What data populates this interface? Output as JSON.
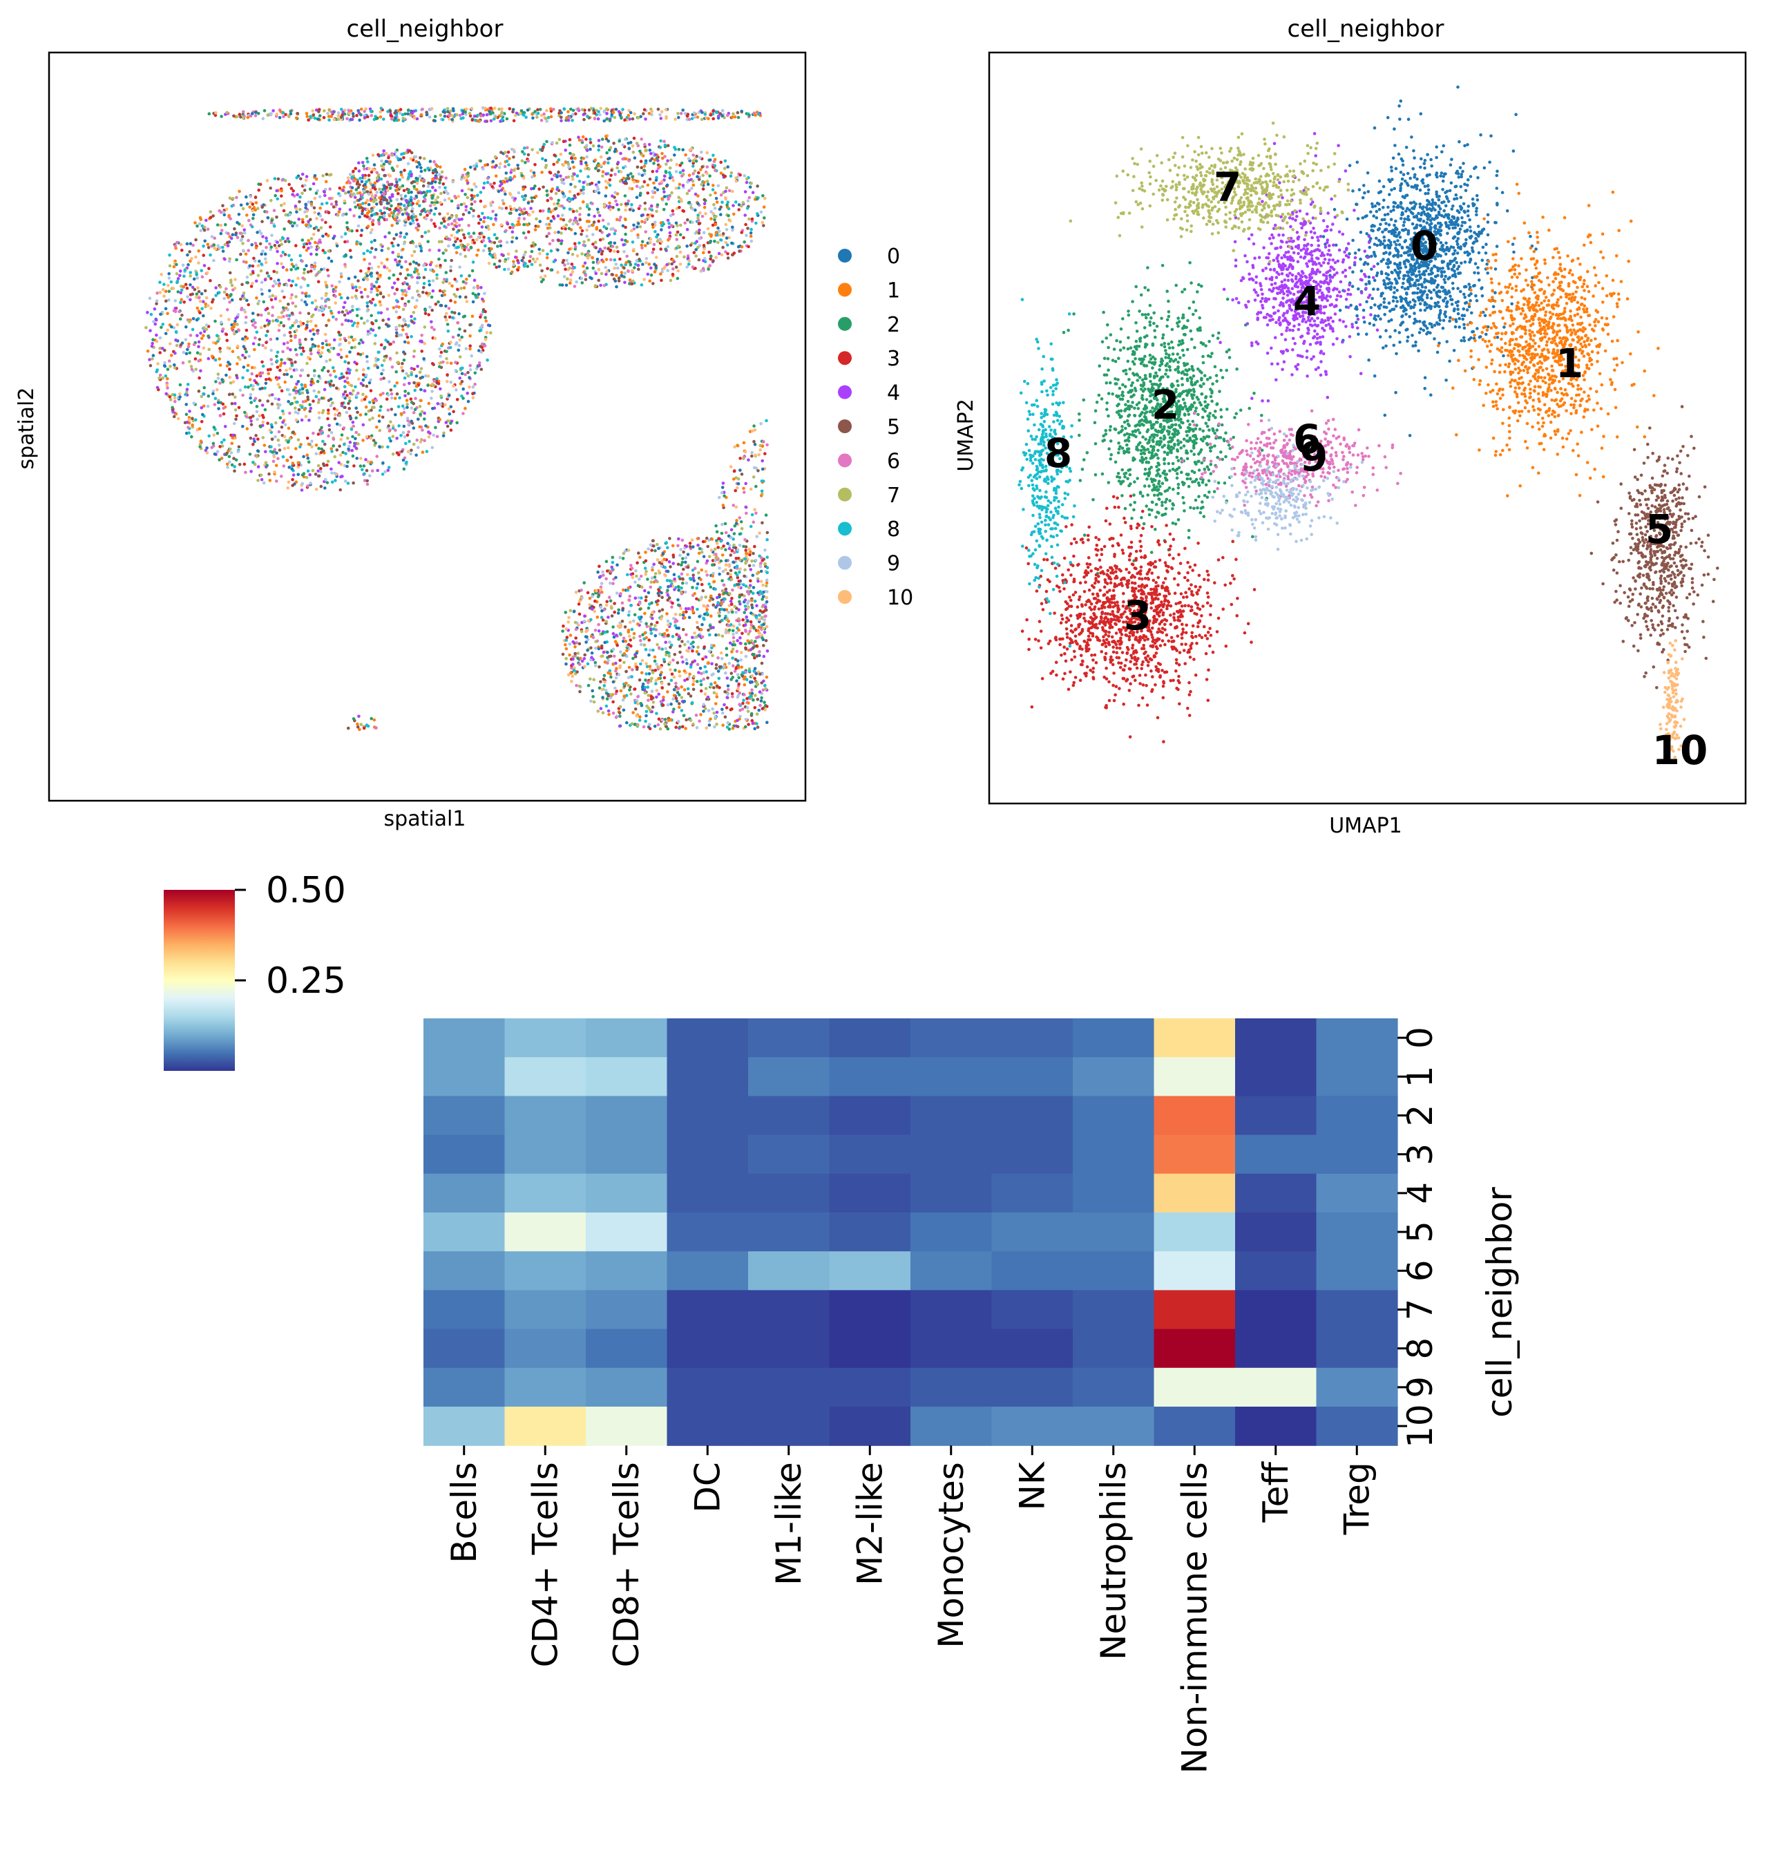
{
  "colors": {
    "0": "#1f77b4",
    "1": "#ff7f0e",
    "2": "#279e68",
    "3": "#d62728",
    "4": "#aa40fc",
    "5": "#8c564b",
    "6": "#e377c2",
    "7": "#b5bd61",
    "8": "#17becf",
    "9": "#aec7e8",
    "10": "#ffbb78"
  },
  "chart_data": [
    {
      "type": "scatter",
      "title": "cell_neighbor",
      "xlabel": "spatial1",
      "ylabel": "spatial2",
      "legend": {
        "placement": "right",
        "labels": [
          "0",
          "1",
          "2",
          "3",
          "4",
          "5",
          "6",
          "7",
          "8",
          "9",
          "10"
        ]
      },
      "note_points": "spatial coordinates of cells, all clusters intermixed"
    },
    {
      "type": "scatter",
      "title": "cell_neighbor",
      "xlabel": "UMAP1",
      "ylabel": "UMAP2",
      "cluster_labels": [
        "0",
        "1",
        "2",
        "3",
        "4",
        "5",
        "6",
        "7",
        "8",
        "9",
        "10"
      ]
    },
    {
      "type": "heatmap",
      "ylabel": "cell_neighbor",
      "columns": [
        "Bcells",
        "CD4+ Tcells",
        "CD8+ Tcells",
        "DC",
        "M1-like",
        "M2-like",
        "Monocytes",
        "NK",
        "Neutrophils",
        "Non-immune cells",
        "Teff",
        "Treg"
      ],
      "rows": [
        "0",
        "1",
        "2",
        "3",
        "4",
        "5",
        "6",
        "7",
        "8",
        "9",
        "10"
      ],
      "values": [
        [
          0.09,
          0.12,
          0.11,
          0.03,
          0.04,
          0.03,
          0.04,
          0.04,
          0.05,
          0.3,
          0.01,
          0.06
        ],
        [
          0.09,
          0.16,
          0.15,
          0.03,
          0.06,
          0.05,
          0.05,
          0.05,
          0.07,
          0.22,
          0.01,
          0.06
        ],
        [
          0.06,
          0.09,
          0.08,
          0.03,
          0.03,
          0.02,
          0.03,
          0.03,
          0.05,
          0.4,
          0.02,
          0.05
        ],
        [
          0.05,
          0.09,
          0.08,
          0.03,
          0.04,
          0.03,
          0.03,
          0.03,
          0.05,
          0.39,
          0.05,
          0.05
        ],
        [
          0.08,
          0.12,
          0.11,
          0.03,
          0.03,
          0.02,
          0.03,
          0.04,
          0.05,
          0.31,
          0.02,
          0.07
        ],
        [
          0.12,
          0.22,
          0.18,
          0.04,
          0.04,
          0.03,
          0.05,
          0.06,
          0.06,
          0.15,
          0.01,
          0.06
        ],
        [
          0.08,
          0.1,
          0.09,
          0.06,
          0.11,
          0.12,
          0.06,
          0.05,
          0.05,
          0.19,
          0.02,
          0.06
        ],
        [
          0.05,
          0.08,
          0.07,
          0.01,
          0.01,
          0.0,
          0.01,
          0.02,
          0.03,
          0.46,
          0.0,
          0.03
        ],
        [
          0.04,
          0.07,
          0.05,
          0.01,
          0.01,
          0.0,
          0.01,
          0.01,
          0.03,
          0.5,
          0.0,
          0.03
        ],
        [
          0.06,
          0.09,
          0.08,
          0.02,
          0.02,
          0.02,
          0.03,
          0.03,
          0.04,
          0.22,
          0.22,
          0.07
        ],
        [
          0.13,
          0.28,
          0.22,
          0.02,
          0.02,
          0.01,
          0.06,
          0.07,
          0.07,
          0.04,
          0.0,
          0.04
        ]
      ],
      "colorbar": {
        "ticks": [
          0.5,
          0.25
        ],
        "tick_labels": [
          "0.50",
          "0.25"
        ],
        "range": [
          0.0,
          0.5
        ],
        "colormap": "RdYlBu_r"
      }
    }
  ]
}
